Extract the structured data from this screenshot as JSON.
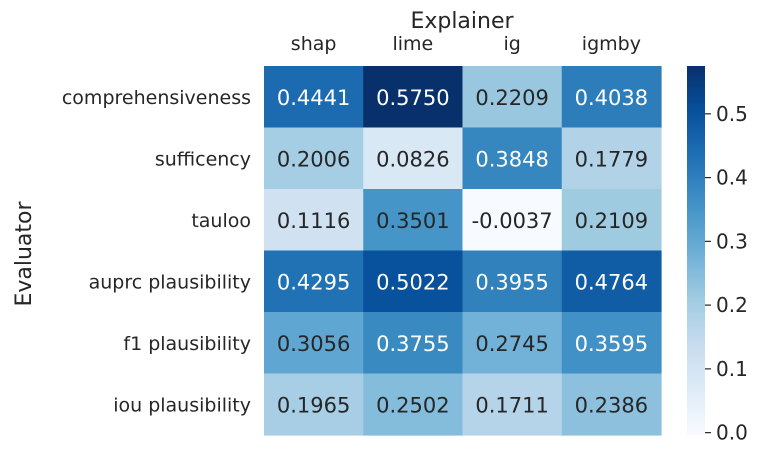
{
  "chart_data": {
    "type": "heatmap",
    "title": "",
    "xlabel": "Explainer",
    "ylabel": "Evaluator",
    "x_categories": [
      "shap",
      "lime",
      "ig",
      "igmby"
    ],
    "y_categories": [
      "comprehensiveness",
      "sufficency",
      "tauloo",
      "auprc plausibility",
      "f1 plausibility",
      "iou plausibility"
    ],
    "values": [
      [
        0.4441,
        0.575,
        0.2209,
        0.4038
      ],
      [
        0.2006,
        0.0826,
        0.3848,
        0.1779
      ],
      [
        0.1116,
        0.3501,
        -0.0037,
        0.2109
      ],
      [
        0.4295,
        0.5022,
        0.3955,
        0.4764
      ],
      [
        0.3056,
        0.3755,
        0.2745,
        0.3595
      ],
      [
        0.1965,
        0.2502,
        0.1711,
        0.2386
      ]
    ],
    "value_labels": [
      [
        "0.4441",
        "0.5750",
        "0.2209",
        "0.4038"
      ],
      [
        "0.2006",
        "0.0826",
        "0.3848",
        "0.1779"
      ],
      [
        "0.1116",
        "0.3501",
        "-0.0037",
        "0.2109"
      ],
      [
        "0.4295",
        "0.5022",
        "0.3955",
        "0.4764"
      ],
      [
        "0.3056",
        "0.3755",
        "0.2745",
        "0.3595"
      ],
      [
        "0.1965",
        "0.2502",
        "0.1711",
        "0.2386"
      ]
    ],
    "colormap": "Blues",
    "x_axis_position": "top",
    "colorbar": {
      "range": [
        -0.0037,
        0.575
      ],
      "ticks": [
        0.0,
        0.1,
        0.2,
        0.3,
        0.4,
        0.5
      ],
      "tick_labels": [
        "0.0",
        "0.1",
        "0.2",
        "0.3",
        "0.4",
        "0.5"
      ]
    }
  }
}
